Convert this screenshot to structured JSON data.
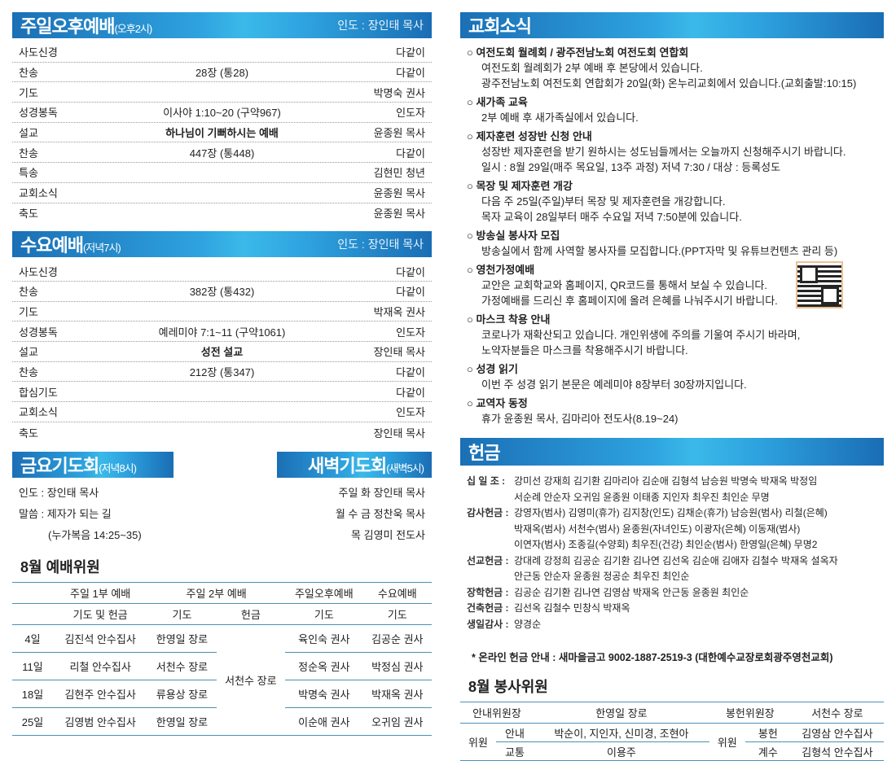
{
  "sunday_pm": {
    "title": "주일오후예배",
    "time": "(오후2시)",
    "leader": "인도 : 장인태 목사",
    "rows": [
      [
        "사도신경",
        "",
        "다같이"
      ],
      [
        "찬송",
        "28장 (통28)",
        "다같이"
      ],
      [
        "기도",
        "",
        "박명숙 권사"
      ],
      [
        "성경봉독",
        "이사야 1:10~20 (구약967)",
        "인도자"
      ],
      [
        "설교",
        "하나님이 기뻐하시는 예배",
        "윤종원 목사"
      ],
      [
        "찬송",
        "447장 (통448)",
        "다같이"
      ],
      [
        "특송",
        "",
        "김현민 청년"
      ],
      [
        "교회소식",
        "",
        "윤종원 목사"
      ],
      [
        "축도",
        "",
        "윤종원 목사"
      ]
    ]
  },
  "wednesday": {
    "title": "수요예배",
    "time": "(저녁7시)",
    "leader": "인도 : 장인태 목사",
    "rows": [
      [
        "사도신경",
        "",
        "다같이"
      ],
      [
        "찬송",
        "382장 (통432)",
        "다같이"
      ],
      [
        "기도",
        "",
        "박재옥 권사"
      ],
      [
        "성경봉독",
        "예레미야 7:1~11 (구약1061)",
        "인도자"
      ],
      [
        "설교",
        "성전 설교",
        "장인태 목사"
      ],
      [
        "찬송",
        "212장 (통347)",
        "다같이"
      ],
      [
        "합심기도",
        "",
        "다같이"
      ],
      [
        "교회소식",
        "",
        "인도자"
      ],
      [
        "축도",
        "",
        "장인태 목사"
      ]
    ]
  },
  "friday": {
    "title": "금요기도회",
    "time": "(저녁8시)",
    "lines": [
      "인도 : 장인태 목사",
      "말씀 : 제자가 되는 길",
      "(누가복음 14:25~35)"
    ]
  },
  "dawn": {
    "title": "새벽기도회",
    "time": "(새벽5시)",
    "lines": [
      "주일 화  장인태 목사",
      "월 수 금 정찬욱 목사",
      "목  김영미 전도사"
    ]
  },
  "worship_staff": {
    "title": "8월 예배위원",
    "header1": [
      "",
      "주일 1부 예배",
      "주일 2부 예배",
      "주일오후예배",
      "수요예배"
    ],
    "header2": [
      "",
      "기도 및 헌금",
      "기도",
      "헌금",
      "기도",
      "기도"
    ],
    "offering_shared": "서천수 장로",
    "rows": [
      [
        "4일",
        "김진석 안수집사",
        "한영일 장로",
        "육인숙 권사",
        "김공순 권사"
      ],
      [
        "11일",
        "리철 안수집사",
        "서천수 장로",
        "정순옥 권사",
        "박정심 권사"
      ],
      [
        "18일",
        "김현주 안수집사",
        "류용상 장로",
        "박명숙 권사",
        "박재옥 권사"
      ],
      [
        "25일",
        "김영범 안수집사",
        "한영일 장로",
        "이순애 권사",
        "오귀임 권사"
      ]
    ]
  },
  "news": {
    "title": "교회소식",
    "items": [
      {
        "title": "여전도회 월례회 / 광주전남노회 여전도회 연합회",
        "lines": [
          "여전도회 월례회가 2부 예배 후 본당에서 있습니다.",
          "광주전남노회 여전도회 연합회가 20일(화) 온누리교회에서 있습니다.(교회출발:10:15)"
        ]
      },
      {
        "title": "새가족 교육",
        "lines": [
          "2부 예배 후 새가족실에서 있습니다."
        ]
      },
      {
        "title": "제자훈련 성장반 신청 안내",
        "lines": [
          "성장반 제자훈련을 받기 원하시는 성도님들께서는 오늘까지 신청해주시기 바랍니다.",
          "일시 : 8월 29일(매주 목요일, 13주 과정) 저녁 7:30 / 대상 : 등록성도"
        ]
      },
      {
        "title": "목장 및 제자훈련 개강",
        "lines": [
          "다음 주 25일(주일)부터 목장 및 제자훈련을 개강합니다.",
          "목자 교육이 28일부터 매주 수요일 저녁 7:50분에 있습니다."
        ]
      },
      {
        "title": "방송실 봉사자 모집",
        "lines": [
          "방송실에서 함께 사역할 봉사자를 모집합니다.(PPT자막 및 유튜브컨텐츠 관리 등)"
        ]
      },
      {
        "title": "영천가정예배",
        "lines": [
          "교안은 교회학교와 홈페이지, QR코드를 통해서 보실 수 있습니다.",
          "가정예배를 드리신 후 홈페이지에 올려 은혜를 나눠주시기 바랍니다."
        ]
      },
      {
        "title": "마스크 착용 안내",
        "lines": [
          "코로나가 재확산되고 있습니다. 개인위생에 주의를 기울여 주시기 바라며,",
          "노약자분들은 마스크를 착용해주시기 바랍니다."
        ]
      },
      {
        "title": "성경 읽기",
        "lines": [
          "이번 주 성경 읽기 본문은 예레미야 8장부터 30장까지입니다."
        ]
      },
      {
        "title": "교역자 동정",
        "lines": [
          "휴가 윤종원 목사, 김마리아 전도사(8.19~24)"
        ]
      }
    ]
  },
  "offering": {
    "title": "헌금",
    "groups": [
      {
        "label": "십 일 조 :",
        "lines": [
          "강미선 강재희 김기환 김마리아 김순애 김형석 남승원 박명숙 박재옥 박정임",
          "서순례 안순자 오귀임 윤종원 이태종 지인자 최우진 최인순 무명"
        ]
      },
      {
        "label": "감사헌금 :",
        "lines": [
          "강영자(범사) 김영미(휴가) 김지창(인도) 김채순(휴가) 남승원(범사) 리철(은혜)",
          "박재옥(범사) 서천수(범사) 윤종원(자녀인도) 이광자(은혜) 이동재(범사)",
          "이연자(범사) 조종길(수양회) 최우진(건강) 최인순(범사) 한영일(은혜) 무명2"
        ]
      },
      {
        "label": "선교헌금 :",
        "lines": [
          "강대례 강정희 김공순 김기환 김나연 김선옥 김순애 김애자 김철수 박재옥 설옥자",
          "안근동 안순자 윤종원 정공순 최우진 최인순"
        ]
      },
      {
        "label": "장학헌금 :",
        "lines": [
          "김공순 김기환 김나연 김영삼 박재옥 안근동 윤종원 최인순"
        ]
      },
      {
        "label": "건축헌금 :",
        "lines": [
          "김선옥 김철수 민창식 박재옥"
        ]
      },
      {
        "label": "생일감사 :",
        "lines": [
          "양경순"
        ]
      }
    ],
    "online": "* 온라인 헌금 안내 : 새마을금고 9002-1887-2519-3 (대한예수교장로회광주영천교회)"
  },
  "service_staff": {
    "title": "8월 봉사위원",
    "guide_head_label": "안내위원장",
    "guide_head": "한영일 장로",
    "offer_head_label": "봉헌위원장",
    "offer_head": "서천수 장로",
    "member_label": "위원",
    "guide": [
      [
        "안내",
        "박순이, 지인자, 신미경, 조현아"
      ],
      [
        "교통",
        "이용주"
      ]
    ],
    "offer": [
      [
        "봉헌",
        "김영삼 안수집사"
      ],
      [
        "계수",
        "김형석 안수집사"
      ]
    ]
  },
  "colors": {
    "header_dark": "#1b6fb5",
    "header_light": "#3bb9e9",
    "rule": "#4d8fb5"
  }
}
